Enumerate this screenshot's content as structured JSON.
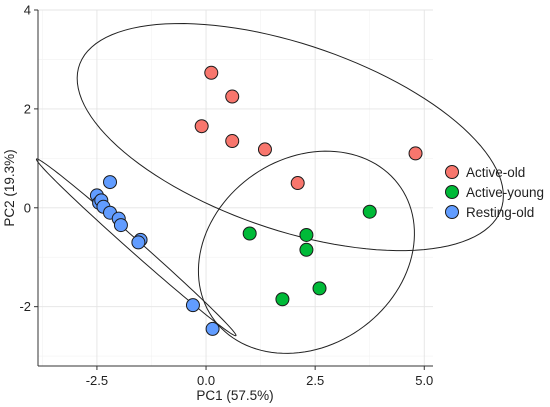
{
  "chart_data": {
    "type": "scatter",
    "xlabel": "PC1 (57.5%)",
    "ylabel": "PC2 (19.3%)",
    "xlim": [
      -3.85,
      5.2
    ],
    "ylim": [
      -3.2,
      4.0
    ],
    "x_ticks": [
      -2.5,
      0.0,
      2.5,
      5.0
    ],
    "x_tick_labels": [
      "-2.5",
      "0.0",
      "2.5",
      "5.0"
    ],
    "y_ticks": [
      -2,
      0,
      2,
      4
    ],
    "y_tick_labels": [
      "-2",
      "0",
      "2",
      "4"
    ],
    "grid": true,
    "legend_position": "right",
    "series": [
      {
        "name": "Active-old",
        "color": "#f8766d",
        "points": [
          [
            0.12,
            2.73
          ],
          [
            0.6,
            2.25
          ],
          [
            -0.1,
            1.65
          ],
          [
            0.6,
            1.35
          ],
          [
            1.35,
            1.18
          ],
          [
            2.1,
            0.5
          ],
          [
            4.8,
            1.1
          ]
        ],
        "ellipse": {
          "center": [
            1.93,
            1.43
          ],
          "semi_axes": [
            5.05,
            1.9
          ],
          "angle_deg": -16
        }
      },
      {
        "name": "Active-young",
        "color": "#00ba38",
        "points": [
          [
            1.0,
            -0.52
          ],
          [
            2.3,
            -0.55
          ],
          [
            2.3,
            -0.85
          ],
          [
            3.75,
            -0.08
          ],
          [
            1.75,
            -1.85
          ],
          [
            2.6,
            -1.63
          ]
        ],
        "ellipse": {
          "center": [
            2.3,
            -0.9
          ],
          "semi_axes": [
            2.55,
            1.95
          ],
          "angle_deg": 22
        }
      },
      {
        "name": "Resting-old",
        "color": "#619cff",
        "points": [
          [
            -2.5,
            0.25
          ],
          [
            -2.2,
            0.52
          ],
          [
            -2.45,
            0.1
          ],
          [
            -2.4,
            0.15
          ],
          [
            -2.35,
            0.02
          ],
          [
            -2.2,
            -0.1
          ],
          [
            -2.0,
            -0.22
          ],
          [
            -1.95,
            -0.35
          ],
          [
            -1.5,
            -0.65
          ],
          [
            -1.55,
            -0.7
          ],
          [
            -0.3,
            -1.97
          ],
          [
            0.15,
            -2.45
          ]
        ],
        "ellipse": {
          "center": [
            -1.6,
            -0.8
          ],
          "semi_axes": [
            2.9,
            0.13
          ],
          "angle_deg": -38
        }
      }
    ]
  }
}
